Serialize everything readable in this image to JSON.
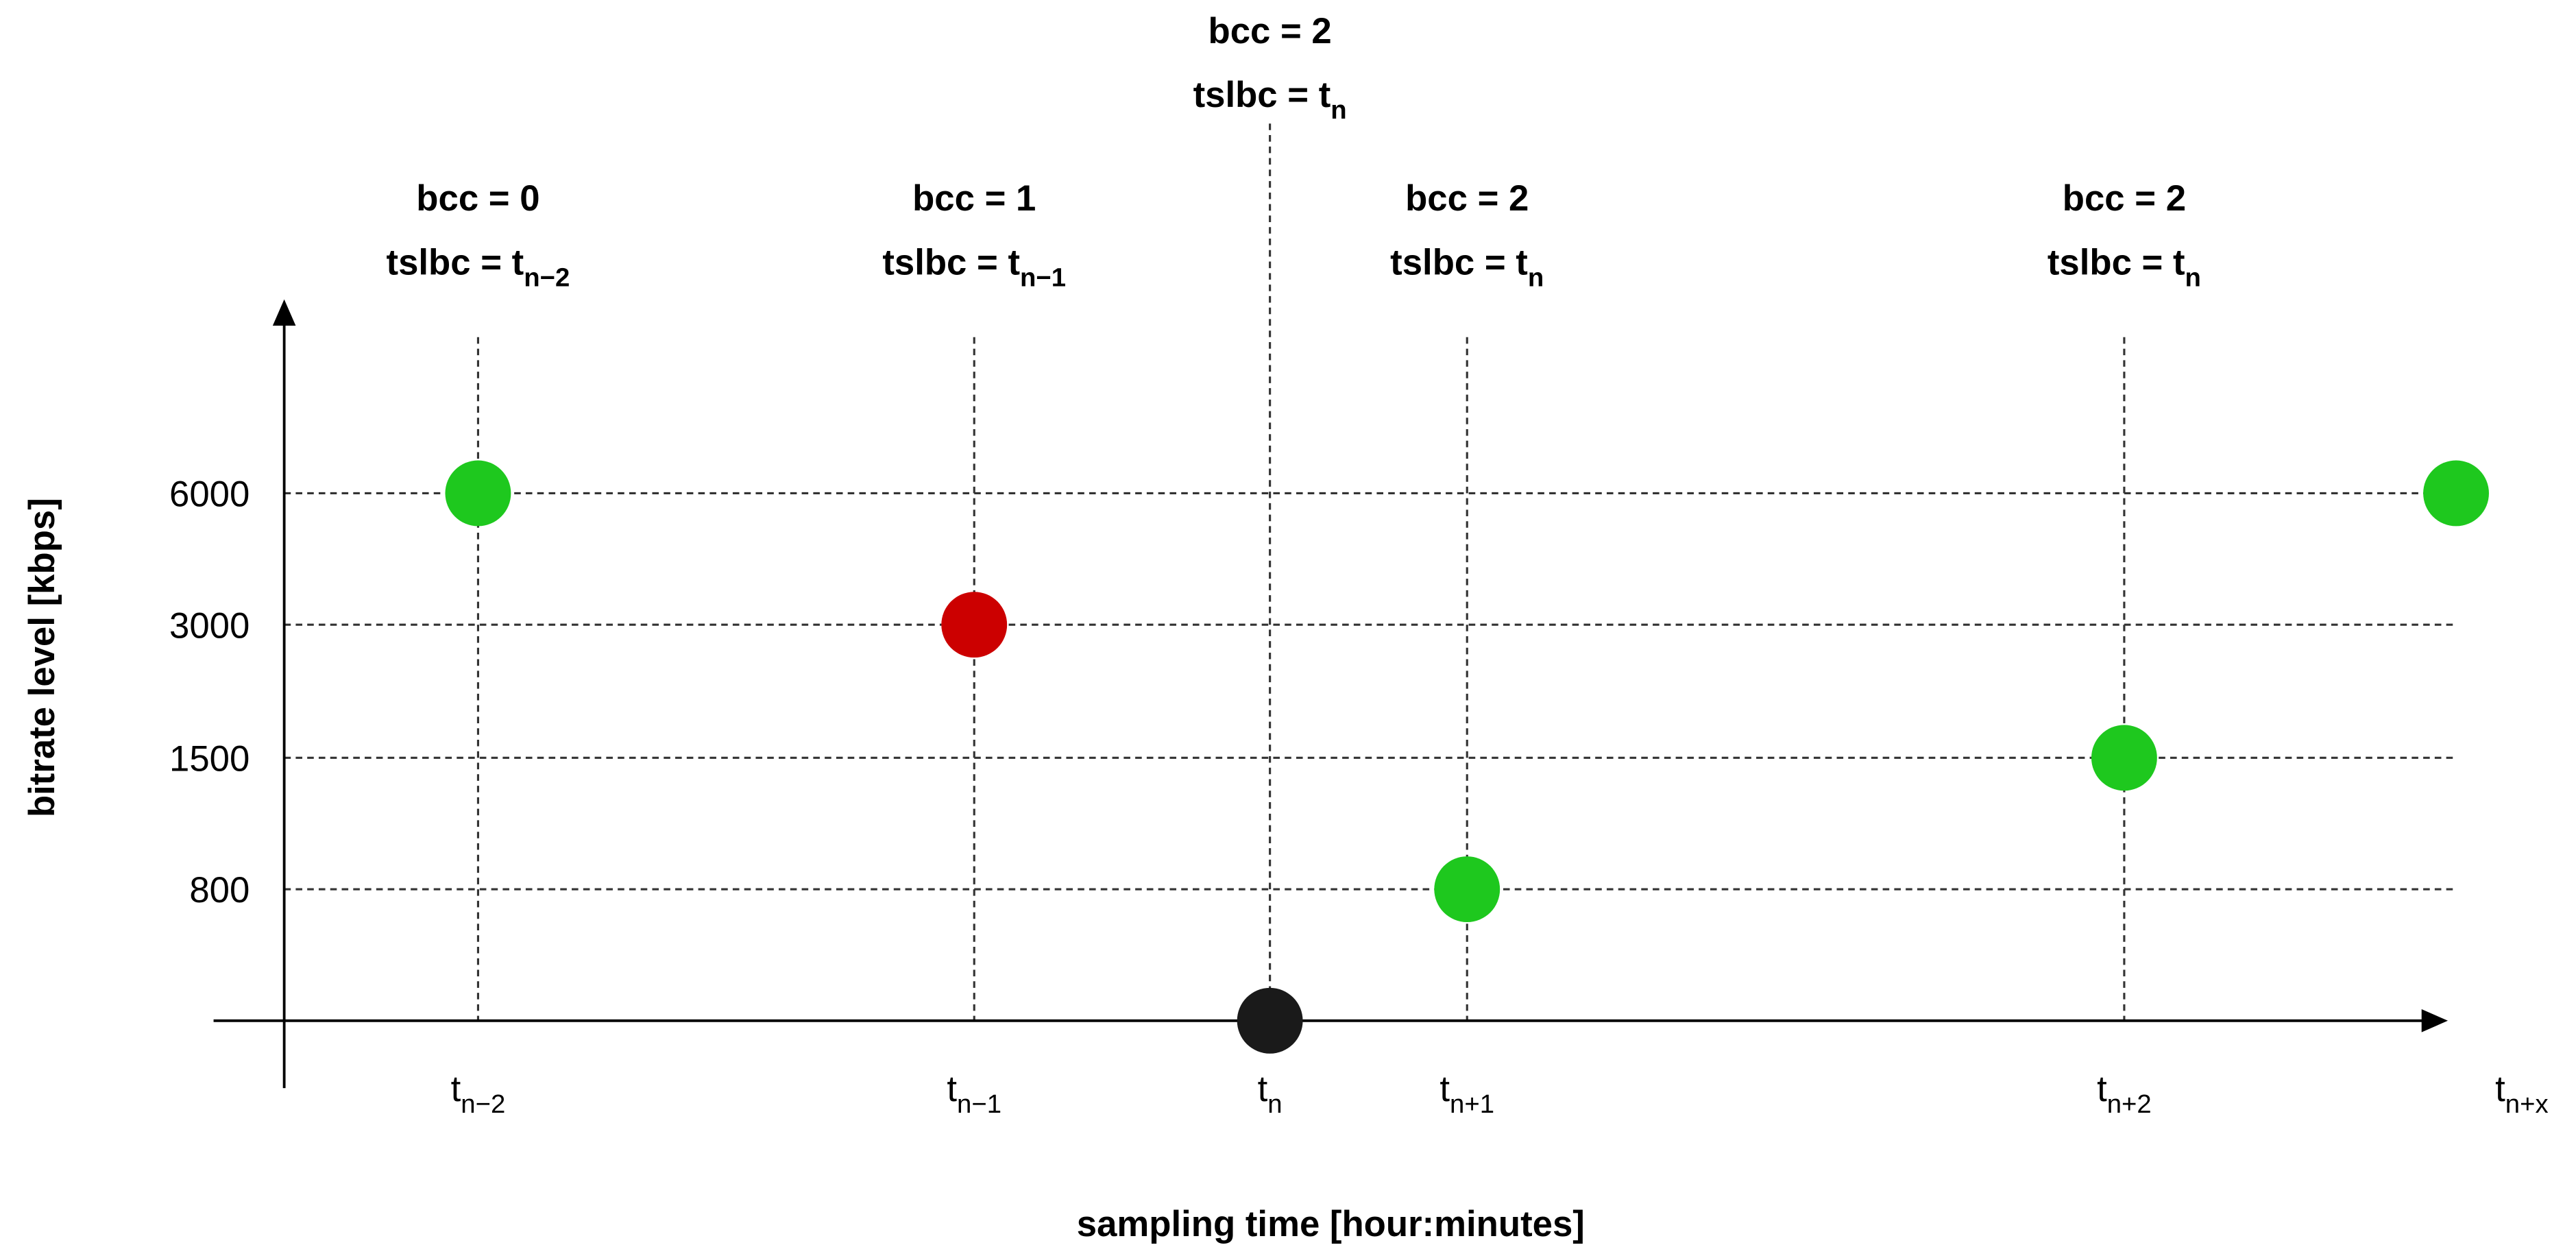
{
  "y_axis_label": "bitrate level [kbps]",
  "x_axis_label": "sampling time [hour:minutes]",
  "y_levels": [
    "6000",
    "3000",
    "1500",
    "800"
  ],
  "x_labels": [
    {
      "base": "t",
      "sub": "n−2"
    },
    {
      "base": "t",
      "sub": "n−1"
    },
    {
      "base": "t",
      "sub": "n"
    },
    {
      "base": "t",
      "sub": "n+1"
    },
    {
      "base": "t",
      "sub": "n+2"
    },
    {
      "base": "t",
      "sub": "n+x"
    }
  ],
  "annotations": [
    {
      "line1": "bcc = 0",
      "line2": "tslbc = t",
      "sub": "n−2"
    },
    {
      "line1": "bcc = 1",
      "line2": "tslbc = t",
      "sub": "n−1"
    },
    {
      "line1": "bcc = 2",
      "line2": "tslbc = t",
      "sub": "n"
    },
    {
      "line1": "bcc = 2",
      "line2": "tslbc = t",
      "sub": "n"
    },
    {
      "line1": "bcc = 2",
      "line2": "tslbc = t",
      "sub": "n"
    }
  ]
}
